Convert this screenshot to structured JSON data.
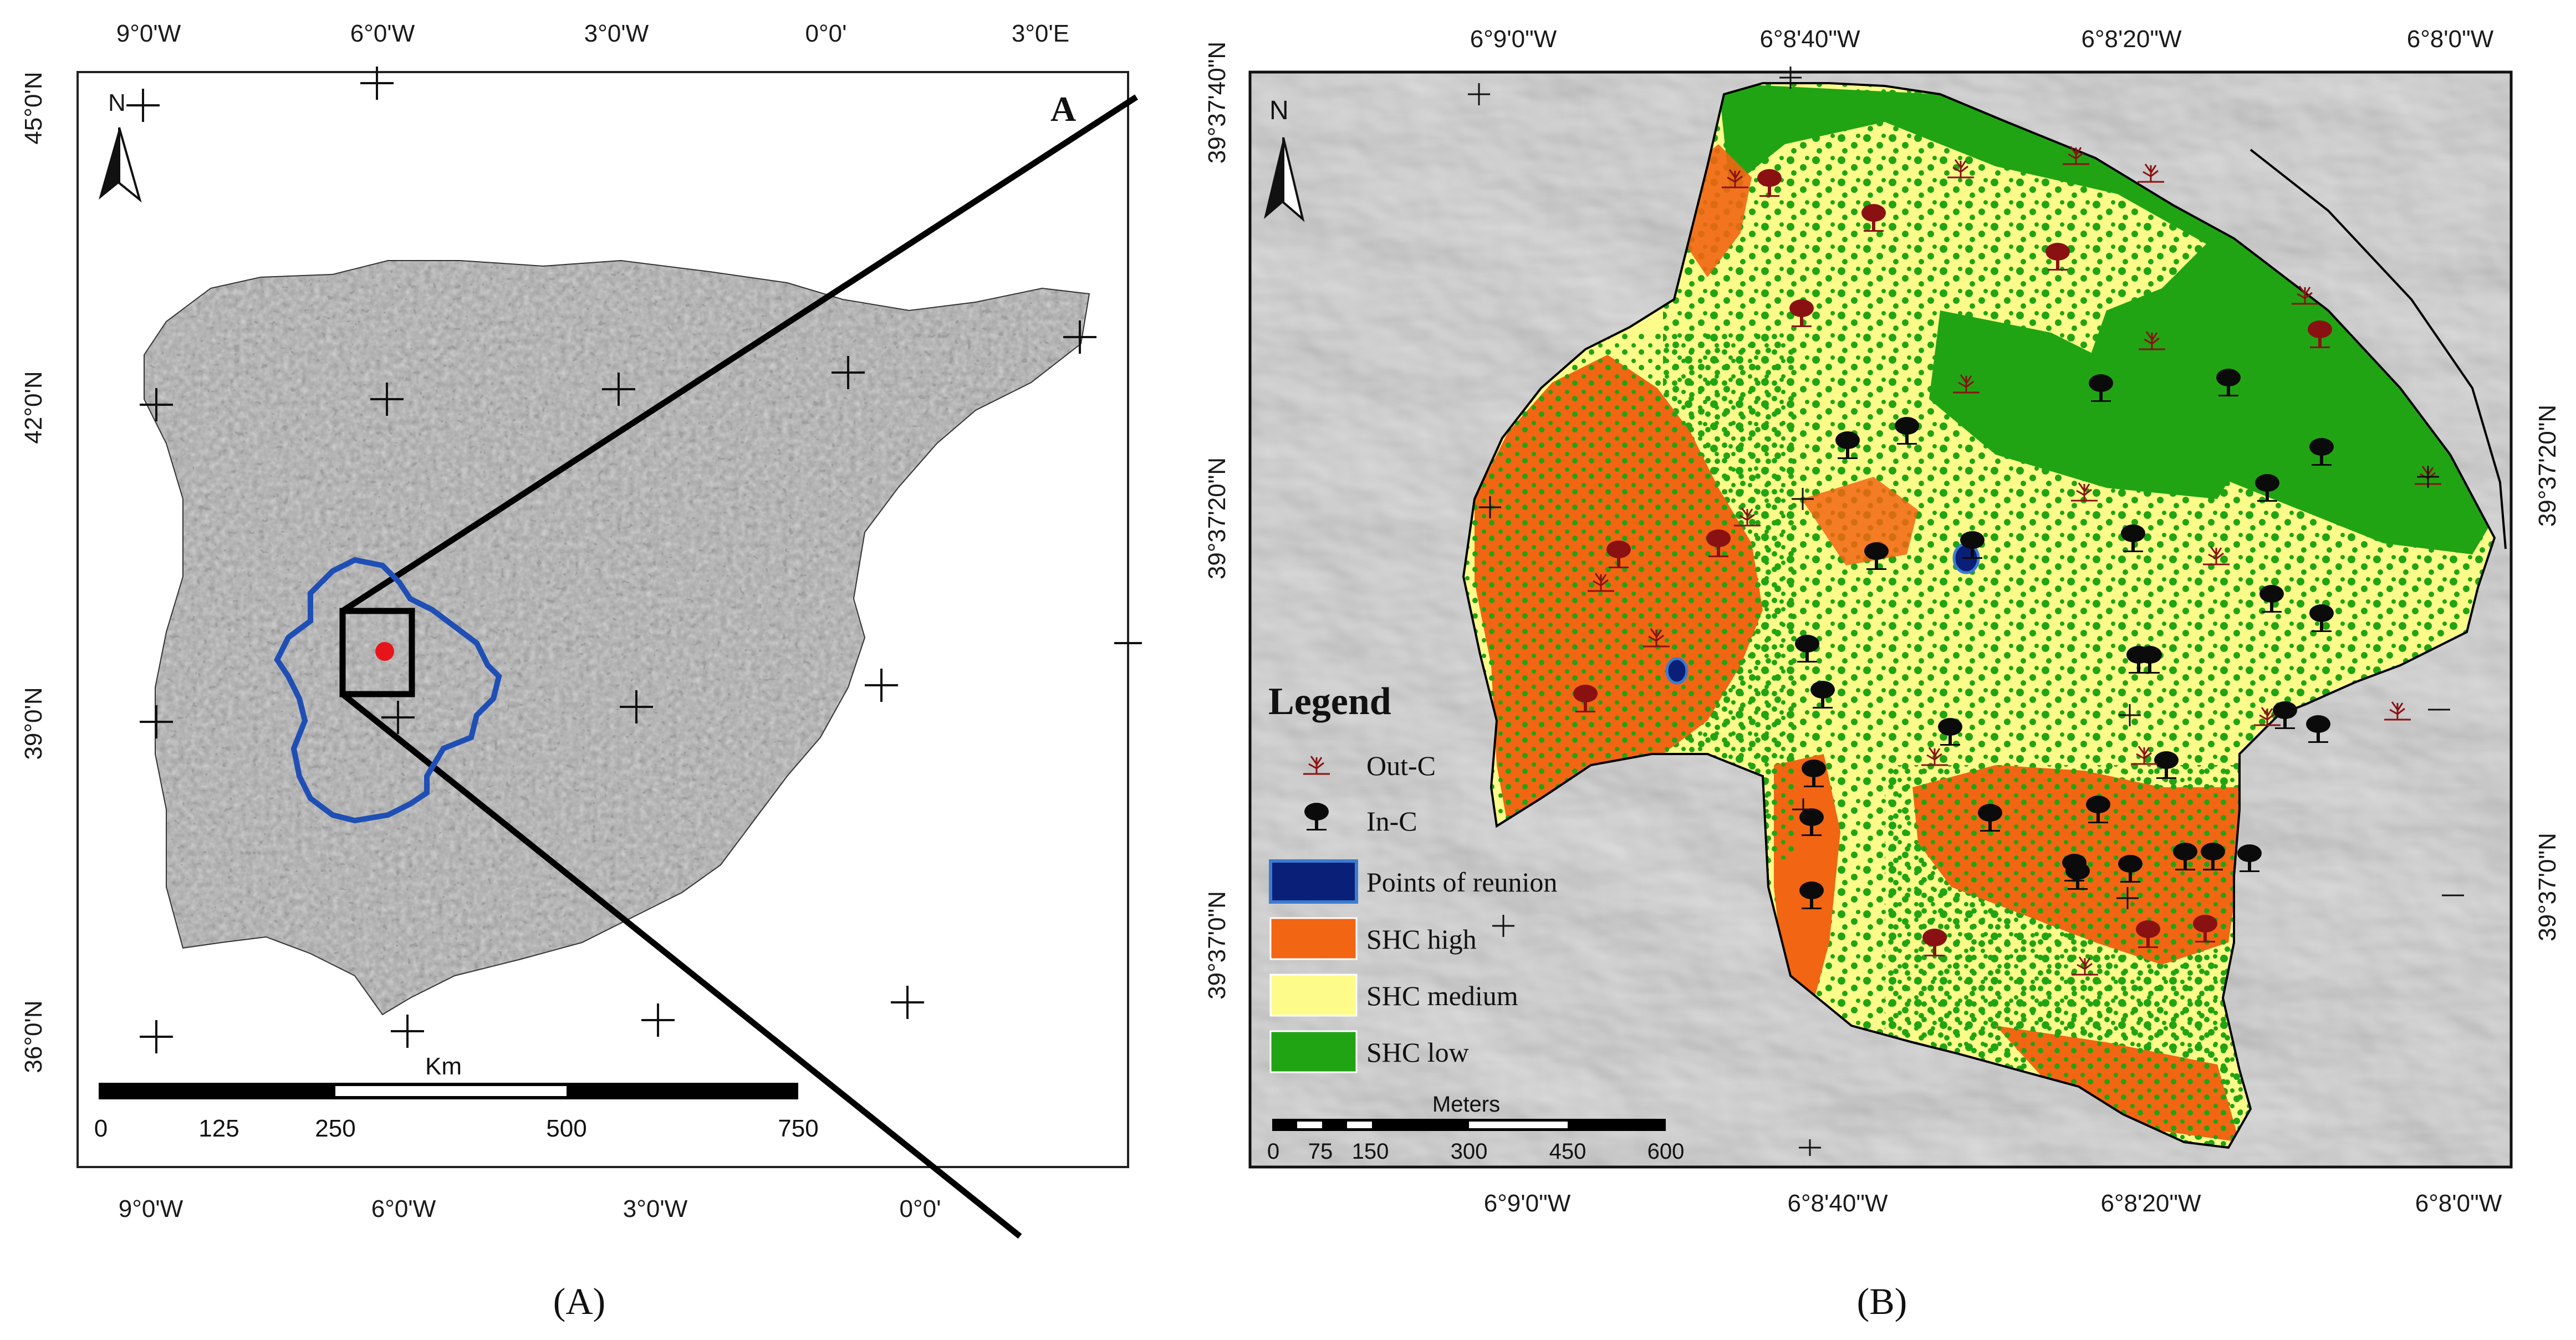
{
  "panel_a": {
    "panel_letter": "A",
    "north": "N",
    "top_lon_labels": [
      "9°0'W",
      "6°0'W",
      "3°0'W",
      "0°0'",
      "3°0'E"
    ],
    "bottom_lon_labels": [
      "9°0'W",
      "6°0'W",
      "3°0'W",
      "0°0'"
    ],
    "lat_labels": [
      "45°0'N",
      "42°0'N",
      "39°0'N",
      "36°0'N"
    ],
    "scale_unit": "Km",
    "scale_ticks": [
      "0",
      "125",
      "250",
      "500",
      "750"
    ],
    "colors": {
      "region_outline": "#1f4fb5",
      "site_marker": "#e8141b",
      "land": "#a8a8a8"
    }
  },
  "panel_b": {
    "north": "N",
    "top_lon_labels": [
      "6°9'0\"W",
      "6°8'40\"W",
      "6°8'20\"W",
      "6°8'0\"W"
    ],
    "bottom_lon_labels": [
      "6°9'0\"W",
      "6°8'40\"W",
      "6°8'20\"W",
      "6°8'0\"W"
    ],
    "left_lat_labels": [
      "39°37'40\"N",
      "39°37'20\"N",
      "39°37'0\"N"
    ],
    "right_lat_labels": [
      "39°37'20\"N",
      "39°37'0\"N"
    ],
    "legend_title": "Legend",
    "legend_items": [
      {
        "label": "Out-C",
        "icon": "sprout-icon"
      },
      {
        "label": "In-C",
        "icon": "tree-icon"
      },
      {
        "label": "Points of reunion",
        "color": "#0a1f78"
      },
      {
        "label": "SHC high",
        "color": "#f26512"
      },
      {
        "label": "SHC medium",
        "color": "#fdfc8a"
      },
      {
        "label": "SHC low",
        "color": "#21a414"
      }
    ],
    "scale_unit": "Meters",
    "scale_ticks": [
      "0",
      "75",
      "150",
      "300",
      "450",
      "600"
    ]
  },
  "captions": {
    "a": "(A)",
    "b": "(B)"
  }
}
